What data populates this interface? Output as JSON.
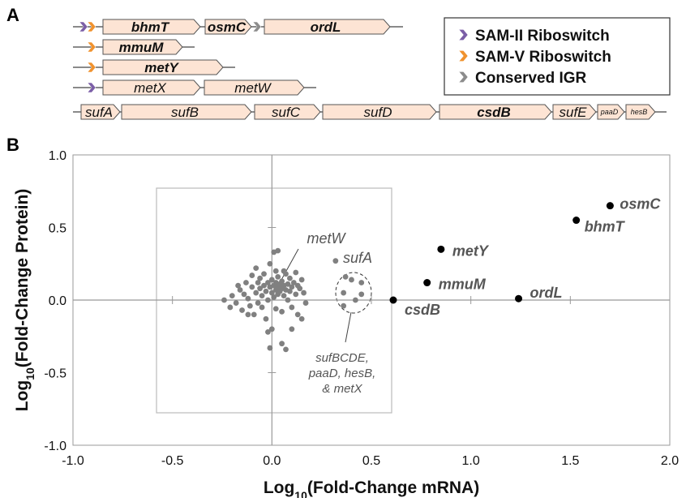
{
  "panel_a": {
    "label": "A",
    "rows": [
      [
        "bhmT",
        "osmC",
        "ordL"
      ],
      [
        "mmuM"
      ],
      [
        "metY"
      ],
      [
        "metX",
        "metW"
      ],
      [
        "sufA",
        "sufB",
        "sufC",
        "sufD",
        "csdB",
        "sufE",
        "paaD",
        "hesB"
      ]
    ],
    "legend": [
      "SAM-II Riboswitch",
      "SAM-V Riboswitch",
      "Conserved IGR"
    ]
  },
  "panel_b_label": "B",
  "chart_data": {
    "type": "scatter",
    "x_label": [
      "Log",
      "10",
      "(Fold-Change mRNA)"
    ],
    "y_label": [
      "Log",
      "10",
      "(Fold-Change Protein)"
    ],
    "xlim": [
      -1.0,
      2.0
    ],
    "ylim": [
      -1.0,
      1.0
    ],
    "xticks": [
      {
        "value": -1.0,
        "label": "-1.0"
      },
      -0.5,
      {
        "value": 0.0,
        "label": "0.0"
      },
      0.5,
      {
        "value": 1.0,
        "label": "1.0"
      },
      1.5,
      {
        "value": 2.0,
        "label": "2.0"
      }
    ],
    "yticks": [
      {
        "value": -1.0,
        "label": "-1.0"
      },
      -0.5,
      {
        "value": 0.0,
        "label": "0.0"
      },
      0.5,
      {
        "value": 1.0,
        "label": "1.0"
      }
    ],
    "annotations": [
      [
        "metW"
      ],
      [
        "sufA"
      ],
      [
        "sufBCDE,",
        "paaD, hesB,",
        "& metX"
      ]
    ],
    "series": [
      {
        "color": "#808080",
        "x": [
          -0.24,
          -0.2,
          -0.18,
          -0.16,
          -0.15,
          -0.14,
          -0.13,
          -0.12,
          -0.11,
          -0.1,
          -0.1,
          -0.09,
          -0.08,
          -0.08,
          -0.07,
          -0.07,
          -0.06,
          -0.06,
          -0.05,
          -0.05,
          -0.04,
          -0.04,
          -0.03,
          -0.03,
          -0.02,
          -0.02,
          -0.01,
          -0.01,
          0.0,
          0.0,
          0.0,
          0.01,
          0.01,
          0.01,
          0.02,
          0.02,
          0.02,
          0.03,
          0.03,
          0.03,
          0.04,
          0.04,
          0.05,
          0.05,
          0.05,
          0.06,
          0.06,
          0.07,
          0.07,
          0.08,
          0.08,
          0.09,
          0.09,
          0.1,
          0.1,
          0.11,
          0.12,
          0.12,
          0.13,
          0.14,
          0.15,
          0.16,
          0.17,
          0.03,
          -0.01,
          0.05,
          0.07,
          0.1,
          -0.02,
          -0.21,
          -0.17,
          0.13,
          0.02,
          0.06,
          -0.12,
          0.15,
          0.32,
          0.37,
          0.4,
          0.45,
          0.36,
          0.45,
          0.42,
          0.36
        ],
        "y": [
          0.0,
          0.03,
          -0.02,
          0.07,
          -0.07,
          0.04,
          0.12,
          0.01,
          -0.04,
          0.09,
          0.17,
          -0.1,
          0.05,
          0.22,
          0.12,
          -0.02,
          0.08,
          0.15,
          -0.05,
          0.03,
          0.1,
          0.18,
          -0.13,
          0.06,
          0.12,
          0.0,
          0.09,
          0.25,
          0.05,
          0.14,
          -0.2,
          0.1,
          0.33,
          0.02,
          0.07,
          0.12,
          -0.06,
          0.09,
          0.16,
          0.04,
          0.11,
          0.06,
          0.08,
          0.13,
          -0.08,
          0.1,
          0.03,
          0.18,
          0.07,
          0.11,
          0.0,
          0.15,
          0.06,
          0.09,
          -0.05,
          0.12,
          0.19,
          0.04,
          0.1,
          0.08,
          0.14,
          0.05,
          -0.02,
          0.34,
          -0.33,
          -0.3,
          -0.34,
          -0.2,
          -0.22,
          -0.05,
          0.1,
          -0.1,
          0.2,
          0.2,
          -0.1,
          -0.13,
          0.27,
          0.16,
          0.14,
          0.12,
          0.05,
          0.04,
          0.0,
          -0.04
        ]
      },
      {
        "color": "#000000",
        "x": [
          1.7,
          1.53,
          0.85,
          0.78,
          1.24,
          0.61
        ],
        "y": [
          0.65,
          0.55,
          0.35,
          0.12,
          0.01,
          0.0
        ],
        "point_labels": [
          "osmC",
          "bhmT",
          "metY",
          "mmuM",
          "ordL",
          "csdB"
        ]
      }
    ]
  }
}
